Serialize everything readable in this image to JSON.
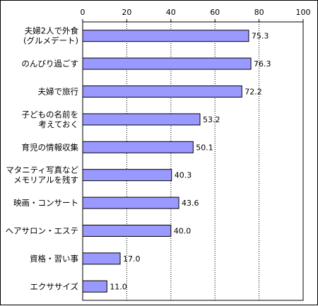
{
  "chart_data": {
    "type": "bar",
    "orientation": "horizontal",
    "categories": [
      [
        "夫婦2人で外食",
        "(グルメデート)"
      ],
      [
        "のんびり過ごす"
      ],
      [
        "夫婦で旅行"
      ],
      [
        "子どもの名前を",
        "考えておく"
      ],
      [
        "育児の情報収集"
      ],
      [
        "マタニティ写真など",
        "メモリアルを残す"
      ],
      [
        "映画・コンサート"
      ],
      [
        "ヘアサロン・エステ"
      ],
      [
        "資格・習い事"
      ],
      [
        "エクササイズ"
      ]
    ],
    "values": [
      75.3,
      76.3,
      72.2,
      53.2,
      50.1,
      40.3,
      43.6,
      40.0,
      17.0,
      11.0
    ],
    "value_labels": [
      "75.3",
      "76.3",
      "72.2",
      "53.2",
      "50.1",
      "40.3",
      "43.6",
      "40.0",
      "17.0",
      "11.0"
    ],
    "xlim": [
      0,
      100
    ],
    "ticks": [
      "0",
      "20",
      "40",
      "60",
      "80",
      "100"
    ],
    "tick_values": [
      0,
      20,
      40,
      60,
      80,
      100
    ],
    "grid": true,
    "title": "",
    "xlabel": "",
    "ylabel": ""
  },
  "colors": {
    "bar_fill": "#9999ff",
    "bar_stroke": "#000000",
    "grid": "#000000",
    "axis": "#000000"
  }
}
